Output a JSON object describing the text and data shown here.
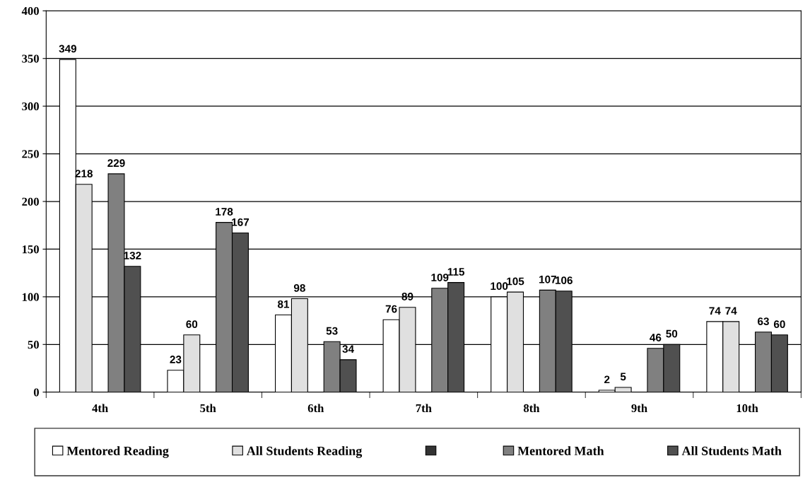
{
  "chart_data": {
    "type": "bar",
    "categories": [
      "4th",
      "5th",
      "6th",
      "7th",
      "8th",
      "9th",
      "10th"
    ],
    "series": [
      {
        "name": "Mentored Reading",
        "color": "#ffffff",
        "values": [
          349,
          23,
          81,
          76,
          100,
          2,
          74
        ]
      },
      {
        "name": "All Students Reading",
        "color": "#e0e0e0",
        "values": [
          218,
          60,
          98,
          89,
          105,
          5,
          74
        ]
      },
      {
        "color": "#333333",
        "values": [
          null,
          null,
          null,
          null,
          null,
          null,
          null
        ]
      },
      {
        "name": "Mentored Math",
        "color": "#808080",
        "values": [
          229,
          178,
          53,
          109,
          107,
          46,
          63
        ]
      },
      {
        "name": "All Students Math",
        "color": "#505050",
        "values": [
          132,
          167,
          34,
          115,
          106,
          50,
          60
        ]
      }
    ],
    "ylim": [
      0,
      400
    ],
    "yticks": [
      0,
      50,
      100,
      150,
      200,
      250,
      300,
      350,
      400
    ],
    "grid": "y",
    "legend": "bottom",
    "data_labels": true
  }
}
